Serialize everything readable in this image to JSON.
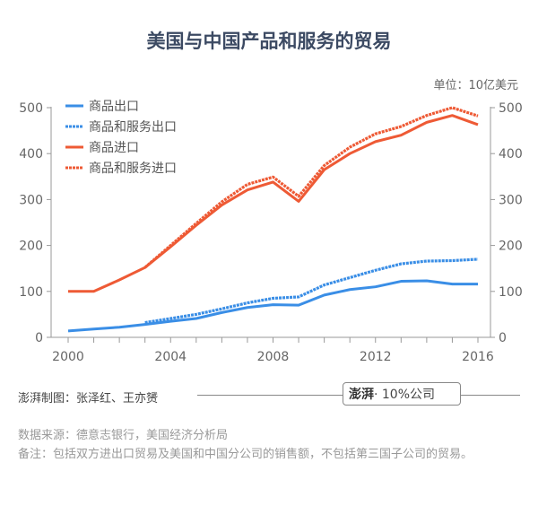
{
  "title": "美国与中国产品和服务的贸易",
  "unit": "单位：10亿美元",
  "credit": "澎湃制图：张泽红、王亦赟",
  "brand": {
    "logo": "澎湃",
    "suffix": "· 10%公司"
  },
  "source": "数据来源：德意志银行，美国经济分析局",
  "note": "备注：包括双方进出口贸易及美国和中国分公司的销售额，不包括第三国子公司的贸易。",
  "chart_data": {
    "type": "line",
    "title": "美国与中国产品和服务的贸易",
    "ylabel": "单位：10亿美元",
    "ylim": [
      0,
      500
    ],
    "xlim": [
      2000,
      2016
    ],
    "yticks": [
      0,
      100,
      200,
      300,
      400,
      500
    ],
    "xticks": [
      2000,
      2004,
      2008,
      2012,
      2016
    ],
    "grid": false,
    "legend": "top-left",
    "series": [
      {
        "name": "商品出口",
        "color": "#3a8ee6",
        "dash": false,
        "x": [
          2000,
          2001,
          2002,
          2003,
          2004,
          2005,
          2006,
          2007,
          2008,
          2009,
          2010,
          2011,
          2012,
          2013,
          2014,
          2015,
          2016
        ],
        "values": [
          14,
          18,
          22,
          28,
          35,
          41,
          54,
          65,
          71,
          70,
          92,
          104,
          110,
          122,
          123,
          116,
          116
        ]
      },
      {
        "name": "商品和服务出口",
        "color": "#3a8ee6",
        "dash": true,
        "x": [
          2003,
          2004,
          2005,
          2006,
          2007,
          2008,
          2009,
          2010,
          2011,
          2012,
          2013,
          2014,
          2015,
          2016
        ],
        "values": [
          32,
          41,
          50,
          62,
          75,
          85,
          88,
          114,
          130,
          146,
          160,
          166,
          167,
          170
        ]
      },
      {
        "name": "商品进口",
        "color": "#ee5a35",
        "dash": false,
        "x": [
          2000,
          2001,
          2002,
          2003,
          2004,
          2005,
          2006,
          2007,
          2008,
          2009,
          2010,
          2011,
          2012,
          2013,
          2014,
          2015,
          2016
        ],
        "values": [
          100,
          100,
          125,
          152,
          197,
          244,
          288,
          321,
          338,
          296,
          365,
          400,
          426,
          440,
          468,
          483,
          463
        ]
      },
      {
        "name": "商品和服务进口",
        "color": "#ee5a35",
        "dash": true,
        "x": [
          2003,
          2004,
          2005,
          2006,
          2007,
          2008,
          2009,
          2010,
          2011,
          2012,
          2013,
          2014,
          2015,
          2016
        ],
        "values": [
          152,
          200,
          248,
          295,
          333,
          349,
          307,
          374,
          414,
          443,
          459,
          483,
          500,
          482
        ]
      }
    ]
  }
}
